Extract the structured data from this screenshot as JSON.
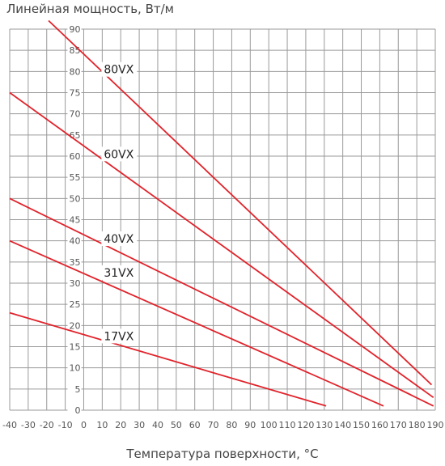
{
  "chart_data": {
    "type": "line",
    "title": "",
    "ylabel": "Линейная мощность, Вт/м",
    "xlabel": "Температура поверхности, °С",
    "xlim": [
      -40,
      190
    ],
    "ylim": [
      0,
      90
    ],
    "x_ticks": [
      -40,
      -30,
      -20,
      -10,
      0,
      10,
      20,
      30,
      40,
      50,
      60,
      70,
      80,
      90,
      100,
      110,
      120,
      130,
      140,
      150,
      160,
      170,
      180,
      190
    ],
    "x_tick_labels": [
      "-40",
      "-30",
      "-20",
      "-10",
      "0",
      "10",
      "20",
      "30",
      "40",
      "50",
      "60",
      "70",
      "80",
      "90",
      "100",
      "110",
      "120",
      "130",
      "140",
      "150",
      "160",
      "170",
      "180",
      "190"
    ],
    "y_ticks": [
      0,
      5,
      10,
      15,
      20,
      25,
      30,
      35,
      40,
      45,
      50,
      55,
      60,
      65,
      70,
      75,
      80,
      85,
      90
    ],
    "y_tick_labels": [
      "0",
      "5",
      "10",
      "15",
      "20",
      "25",
      "30",
      "35",
      "40",
      "45",
      "50",
      "55",
      "60",
      "65",
      "70",
      "75",
      "80",
      "85",
      "90"
    ],
    "grid": true,
    "line_color": "#e0232b",
    "grid_color": "#9a9a9a",
    "series": [
      {
        "name": "80VX",
        "points": [
          [
            -19,
            92
          ],
          [
            188,
            6
          ]
        ],
        "label_at": [
          10,
          80.5
        ]
      },
      {
        "name": "60VX",
        "points": [
          [
            -40,
            75
          ],
          [
            189,
            3
          ]
        ],
        "label_at": [
          10,
          60.5
        ]
      },
      {
        "name": "40VX",
        "points": [
          [
            -40,
            50
          ],
          [
            189,
            1
          ]
        ],
        "label_at": [
          10,
          40.5
        ]
      },
      {
        "name": "31VX",
        "points": [
          [
            -40,
            40
          ],
          [
            162,
            1
          ]
        ],
        "label_at": [
          10,
          32.5
        ]
      },
      {
        "name": "17VX",
        "points": [
          [
            -40,
            23
          ],
          [
            131,
            1
          ]
        ],
        "label_at": [
          10,
          17.5
        ]
      }
    ]
  }
}
